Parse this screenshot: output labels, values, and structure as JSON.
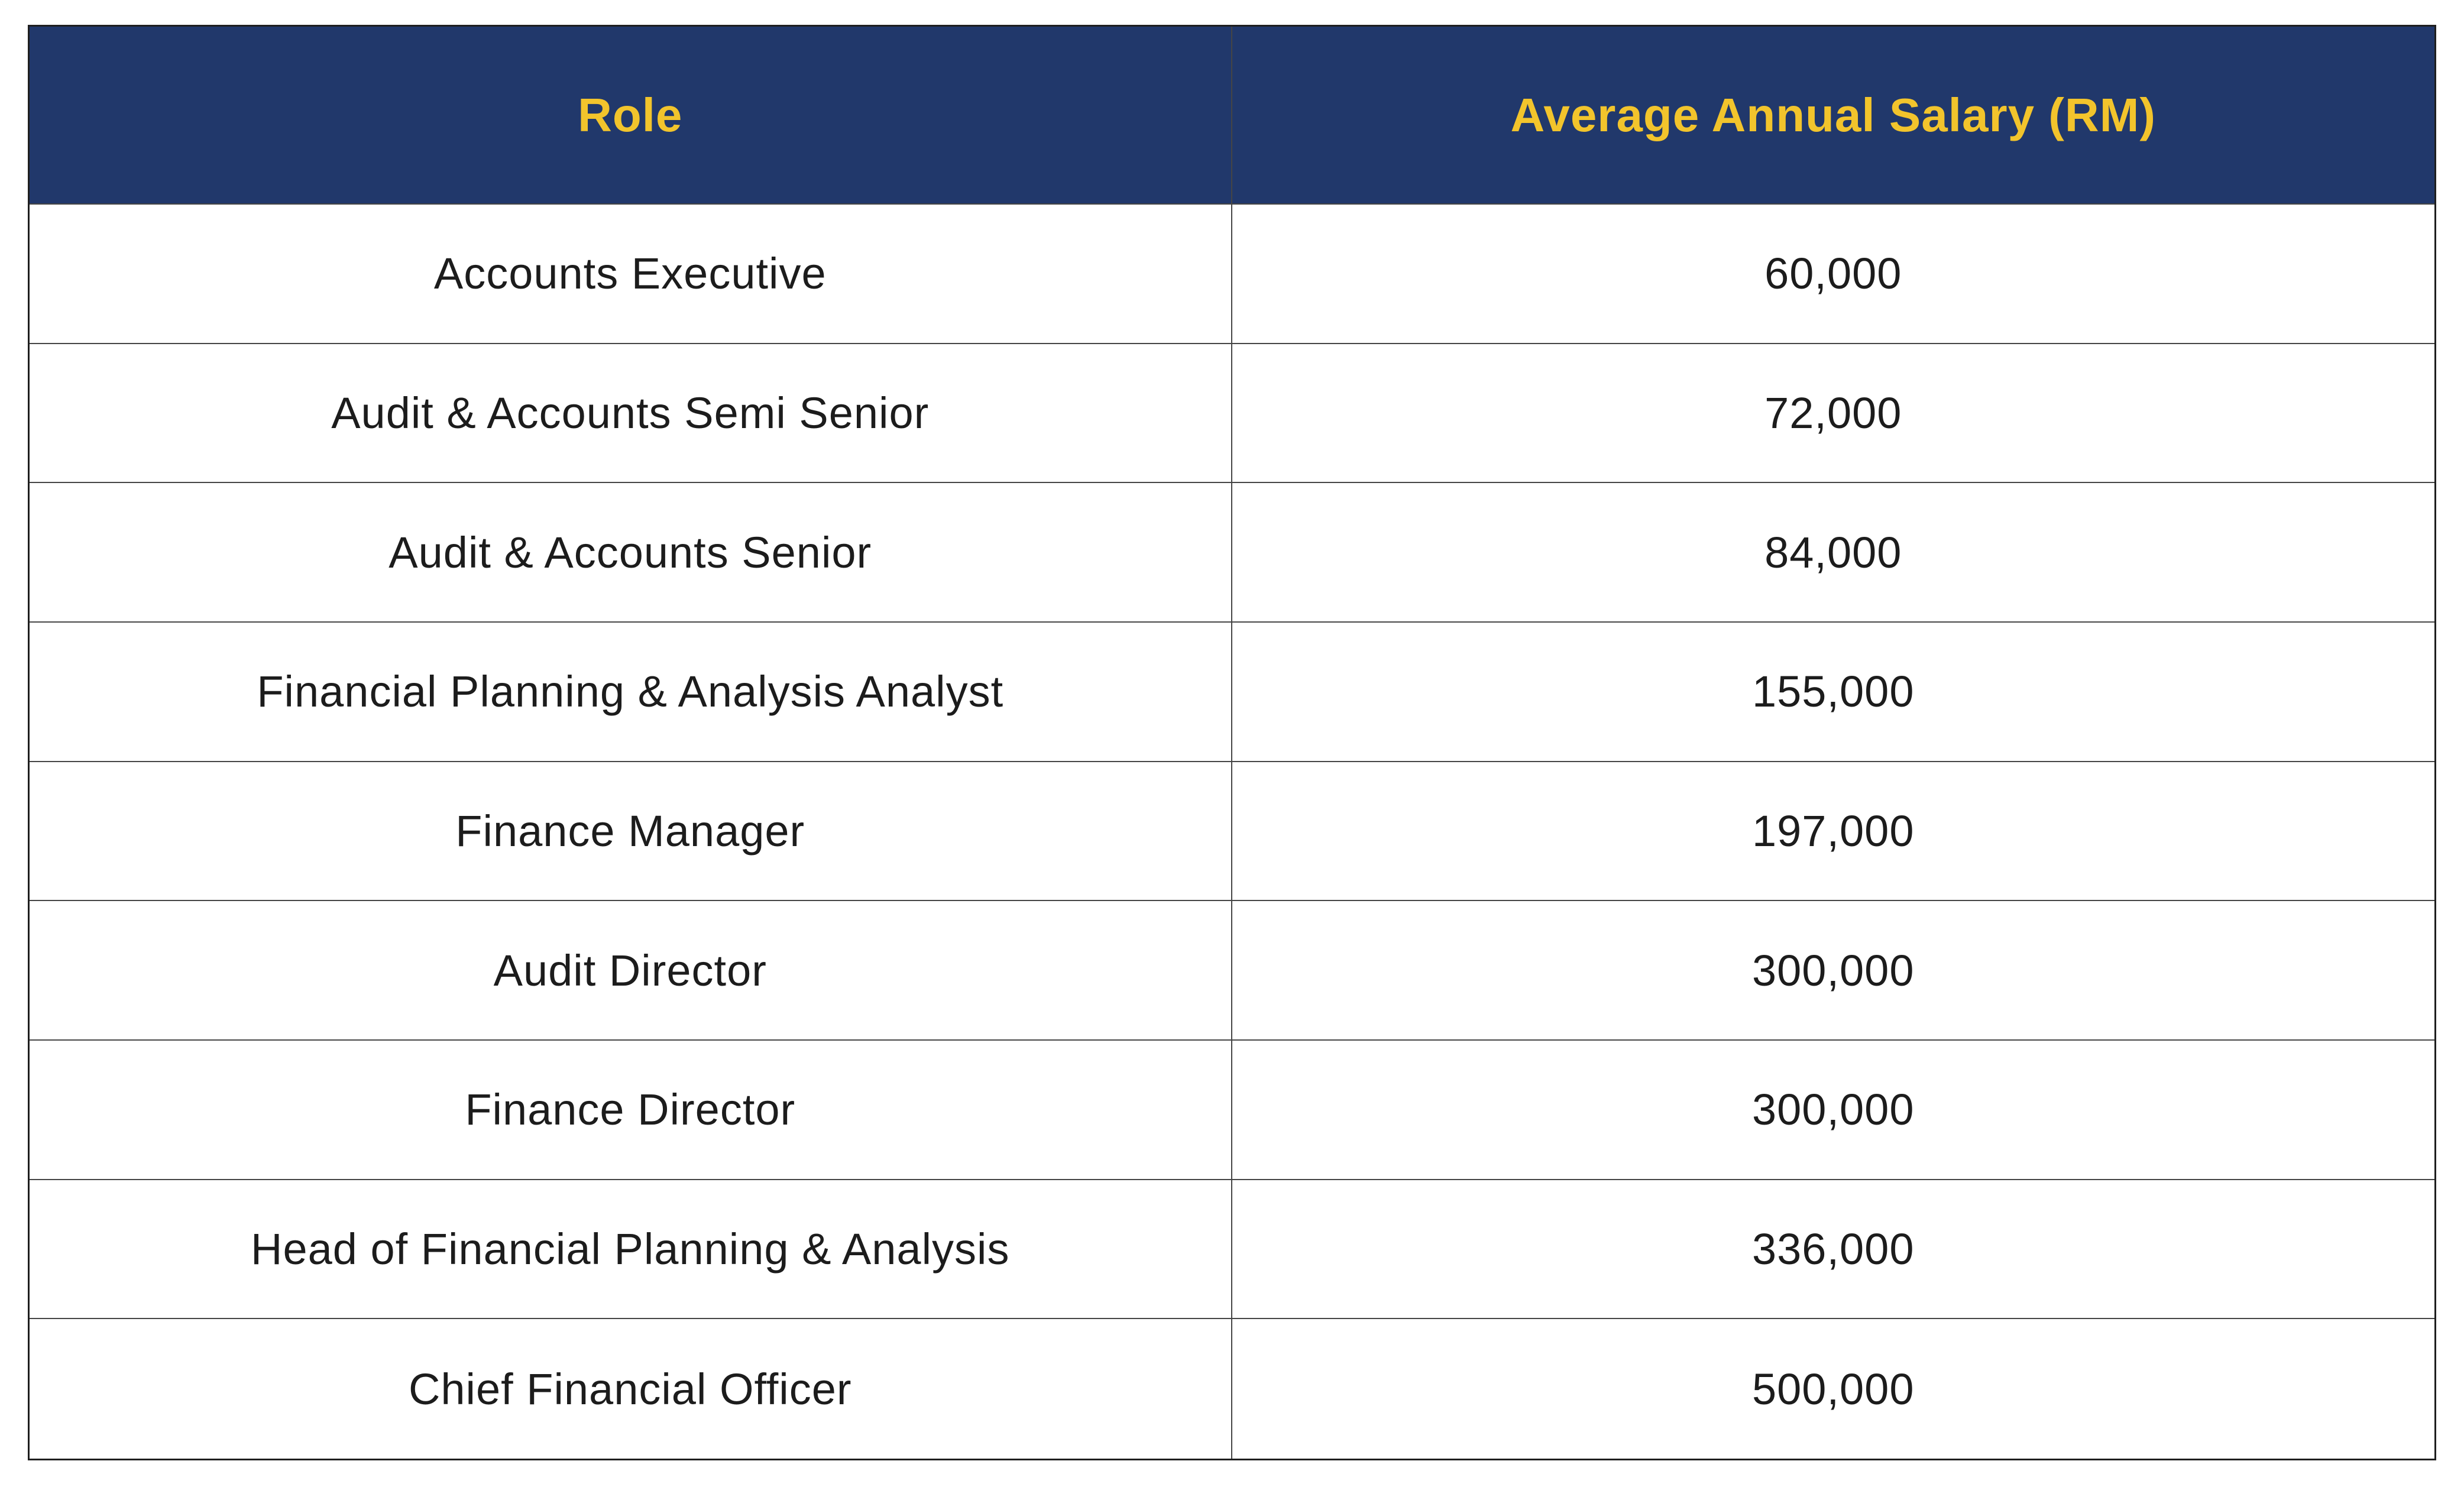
{
  "page": {
    "background": "#ffffff"
  },
  "colors": {
    "header_bg": "#21386B",
    "header_text": "#F2C42C",
    "body_text": "#1C1C1C",
    "grid_line": "#454545",
    "outer_border": "#1F1F1F"
  },
  "table": {
    "header": {
      "role_label": "Role",
      "salary_label": "Average Annual Salary (RM)"
    },
    "rows": [
      {
        "role": "Accounts Executive",
        "salary": "60,000"
      },
      {
        "role": "Audit & Accounts Semi Senior",
        "salary": "72,000"
      },
      {
        "role": "Audit & Accounts Senior",
        "salary": "84,000"
      },
      {
        "role": "Financial Planning & Analysis Analyst",
        "salary": "155,000"
      },
      {
        "role": "Finance Manager",
        "salary": "197,000"
      },
      {
        "role": "Audit Director",
        "salary": "300,000"
      },
      {
        "role": "Finance Director",
        "salary": "300,000"
      },
      {
        "role": "Head of Financial Planning & Analysis",
        "salary": "336,000"
      },
      {
        "role": "Chief Financial Officer",
        "salary": "500,000"
      }
    ]
  },
  "chart_data": {
    "type": "table",
    "columns": [
      "Role",
      "Average Annual Salary (RM)"
    ],
    "categories": [
      "Accounts Executive",
      "Audit & Accounts Semi Senior",
      "Audit & Accounts Senior",
      "Financial Planning & Analysis Analyst",
      "Finance Manager",
      "Audit Director",
      "Finance Director",
      "Head of Financial Planning & Analysis",
      "Chief Financial Officer"
    ],
    "values": [
      60000,
      72000,
      84000,
      155000,
      197000,
      300000,
      300000,
      336000,
      500000
    ],
    "title": "",
    "currency_label": "RM",
    "layout": {
      "grid": true,
      "header_style": "navy-with-gold-text",
      "alignment": "center"
    }
  }
}
